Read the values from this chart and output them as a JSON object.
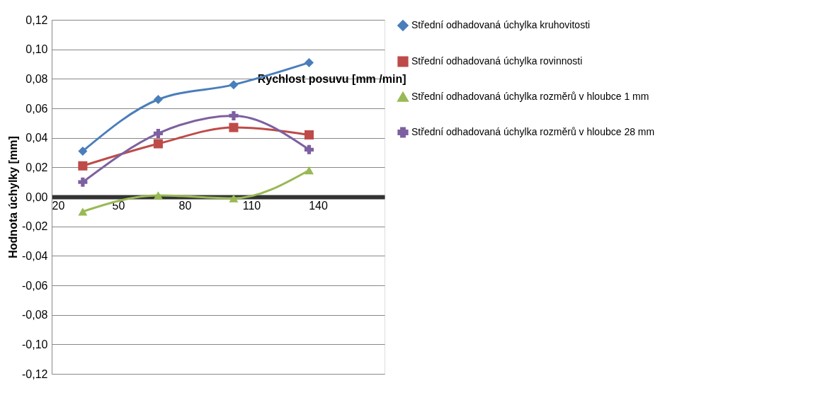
{
  "chart_data": {
    "type": "line",
    "xlabel": "Rychlost posuvu [mm /min]",
    "ylabel": "Hodnota úchylky [mm]",
    "xlim": [
      20,
      170
    ],
    "xticks": [
      20,
      50,
      80,
      110,
      140
    ],
    "ylim": [
      -0.12,
      0.12
    ],
    "yticks": [
      {
        "value": -0.12,
        "label": "-0,12"
      },
      {
        "value": -0.1,
        "label": "-0,10"
      },
      {
        "value": -0.08,
        "label": "-0,08"
      },
      {
        "value": -0.06,
        "label": "-0,06"
      },
      {
        "value": -0.04,
        "label": "-0,04"
      },
      {
        "value": -0.02,
        "label": "-0,02"
      },
      {
        "value": 0,
        "label": "0,00"
      },
      {
        "value": 0.02,
        "label": "0,02"
      },
      {
        "value": 0.04,
        "label": "0,04"
      },
      {
        "value": 0.06,
        "label": "0,06"
      },
      {
        "value": 0.08,
        "label": "0,08"
      },
      {
        "value": 0.1,
        "label": "0,10"
      },
      {
        "value": 0.12,
        "label": "0,12"
      }
    ],
    "x": [
      34,
      68,
      102,
      136
    ],
    "grid": "y",
    "legend": "right",
    "series": [
      {
        "name": "Střední odhadovaná úchylka kruhovitosti",
        "color": "#4a7ebb",
        "marker": "diamond",
        "values": [
          0.031,
          0.066,
          0.076,
          0.091
        ]
      },
      {
        "name": "Střední odhadovaná úchylka rovinnosti",
        "color": "#be4b48",
        "marker": "square",
        "values": [
          0.021,
          0.036,
          0.047,
          0.042
        ]
      },
      {
        "name": "Střední odhadovaná úchylka rozměrů v hloubce 1 mm",
        "color": "#98b954",
        "marker": "triangle",
        "values": [
          -0.01,
          0.001,
          -0.001,
          0.018
        ]
      },
      {
        "name": "Střední odhadovaná úchylka rozměrů v hloubce 28 mm",
        "color": "#7d60a0",
        "marker": "cross",
        "values": [
          0.01,
          0.043,
          0.055,
          0.032
        ]
      }
    ]
  }
}
